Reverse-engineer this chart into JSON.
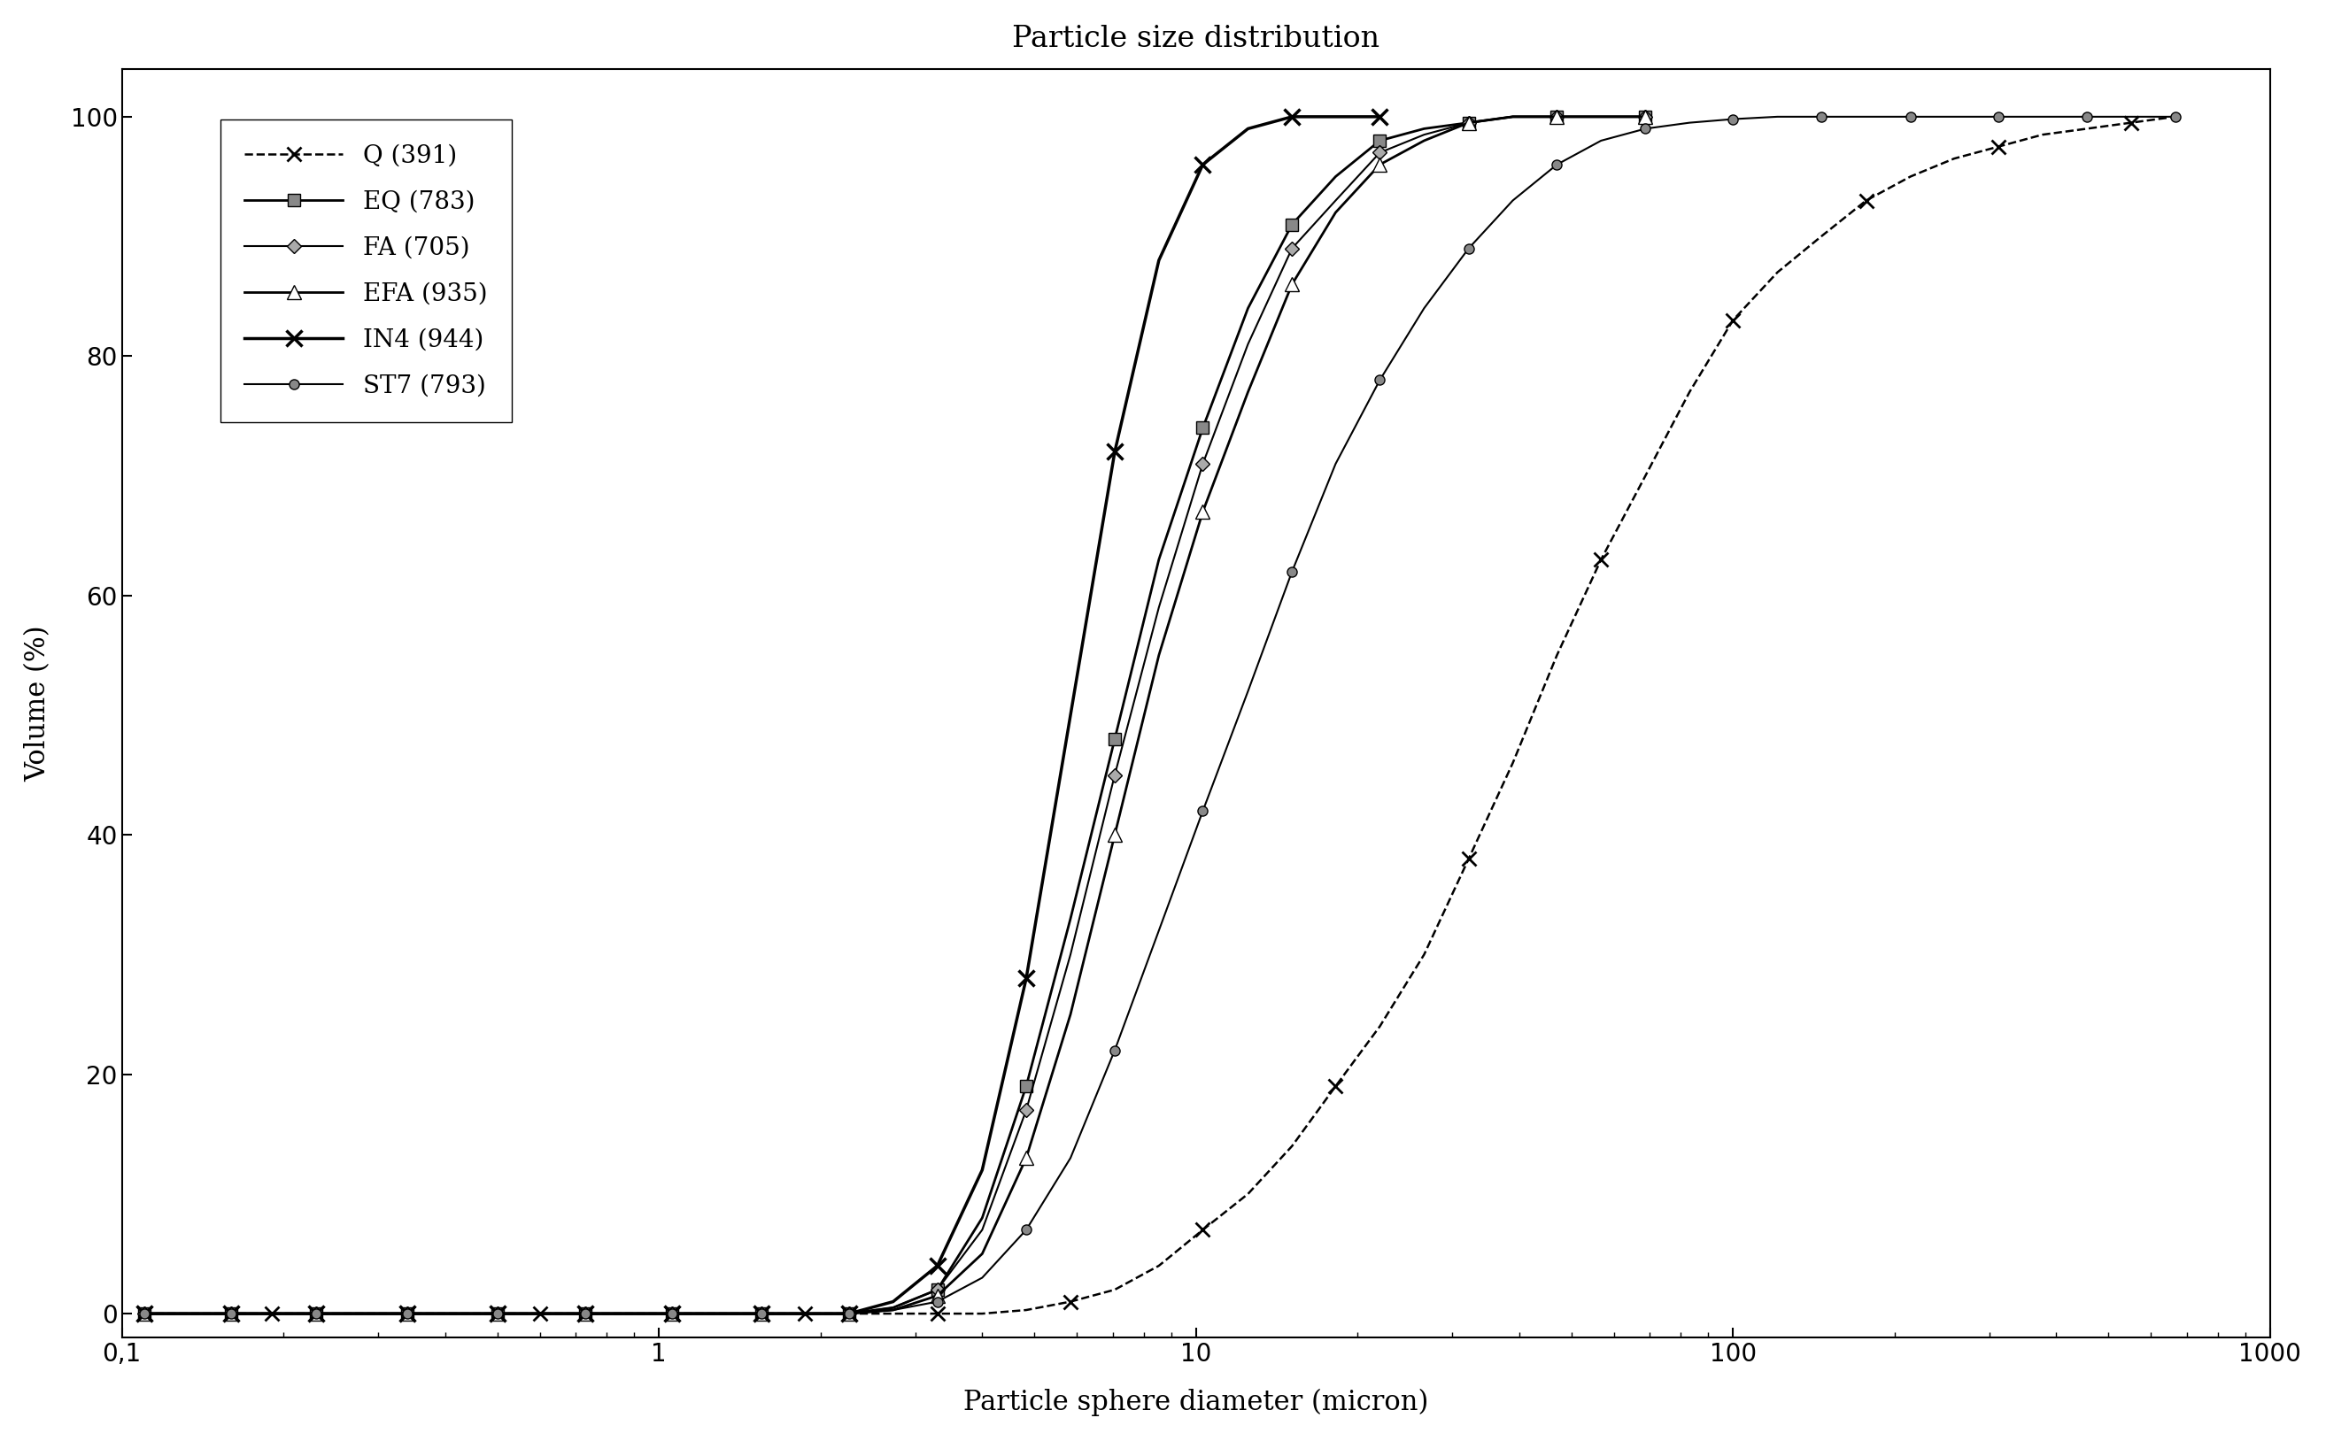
{
  "title": "Particle size distribution",
  "xlabel": "Particle sphere diameter (micron)",
  "ylabel": "Volume (%)",
  "xlim": [
    0.1,
    1000
  ],
  "ylim": [
    -2,
    104
  ],
  "yticks": [
    0,
    20,
    40,
    60,
    80,
    100
  ],
  "background_color": "#ffffff",
  "series": [
    {
      "label": "Q (391)",
      "color": "#000000",
      "linestyle": "--",
      "linewidth": 1.8,
      "marker": "x",
      "markersize": 12,
      "markeredgewidth": 2,
      "markevery": 3,
      "x": [
        0.11,
        0.13,
        0.16,
        0.19,
        0.23,
        0.28,
        0.34,
        0.41,
        0.5,
        0.6,
        0.73,
        0.88,
        1.06,
        1.28,
        1.55,
        1.87,
        2.26,
        2.73,
        3.3,
        4.0,
        4.83,
        5.84,
        7.06,
        8.53,
        10.3,
        12.5,
        15.1,
        18.2,
        22.0,
        26.6,
        32.2,
        38.9,
        47.0,
        56.8,
        68.7,
        83.0,
        100,
        121,
        146,
        177,
        214,
        258,
        312,
        377,
        456,
        551,
        666
      ],
      "y": [
        0,
        0,
        0,
        0,
        0,
        0,
        0,
        0,
        0,
        0,
        0,
        0,
        0,
        0,
        0,
        0,
        0,
        0,
        0,
        0,
        0.3,
        1,
        2,
        4,
        7,
        10,
        14,
        19,
        24,
        30,
        38,
        46,
        55,
        63,
        70,
        77,
        83,
        87,
        90,
        93,
        95,
        96.5,
        97.5,
        98.5,
        99,
        99.5,
        100
      ]
    },
    {
      "label": "EQ (783)",
      "color": "#000000",
      "linestyle": "-",
      "linewidth": 2.0,
      "marker": "s",
      "markersize": 10,
      "markerfacecolor": "#888888",
      "markeredgecolor": "#000000",
      "markevery": 2,
      "x": [
        0.11,
        0.13,
        0.16,
        0.19,
        0.23,
        0.28,
        0.34,
        0.41,
        0.5,
        0.6,
        0.73,
        0.88,
        1.06,
        1.28,
        1.55,
        1.87,
        2.26,
        2.73,
        3.3,
        4.0,
        4.83,
        5.84,
        7.06,
        8.53,
        10.3,
        12.5,
        15.1,
        18.2,
        22.0,
        26.6,
        32.2,
        38.9,
        47.0,
        56.8,
        68.7
      ],
      "y": [
        0,
        0,
        0,
        0,
        0,
        0,
        0,
        0,
        0,
        0,
        0,
        0,
        0,
        0,
        0,
        0,
        0,
        0.5,
        2,
        8,
        19,
        33,
        48,
        63,
        74,
        84,
        91,
        95,
        98,
        99,
        99.5,
        100,
        100,
        100,
        100
      ]
    },
    {
      "label": "FA (705)",
      "color": "#000000",
      "linestyle": "-",
      "linewidth": 1.5,
      "marker": "D",
      "markersize": 8,
      "markerfacecolor": "#aaaaaa",
      "markeredgecolor": "#000000",
      "markevery": 2,
      "x": [
        0.11,
        0.13,
        0.16,
        0.19,
        0.23,
        0.28,
        0.34,
        0.41,
        0.5,
        0.6,
        0.73,
        0.88,
        1.06,
        1.28,
        1.55,
        1.87,
        2.26,
        2.73,
        3.3,
        4.0,
        4.83,
        5.84,
        7.06,
        8.53,
        10.3,
        12.5,
        15.1,
        18.2,
        22.0,
        26.6,
        32.2,
        38.9,
        47.0,
        56.8,
        68.7
      ],
      "y": [
        0,
        0,
        0,
        0,
        0,
        0,
        0,
        0,
        0,
        0,
        0,
        0,
        0,
        0,
        0,
        0,
        0,
        0.5,
        2,
        7,
        17,
        30,
        45,
        59,
        71,
        81,
        89,
        93,
        97,
        98.5,
        99.5,
        100,
        100,
        100,
        100
      ]
    },
    {
      "label": "EFA (935)",
      "color": "#000000",
      "linestyle": "-",
      "linewidth": 2.0,
      "marker": "^",
      "markersize": 11,
      "markerfacecolor": "white",
      "markeredgecolor": "#000000",
      "markevery": 2,
      "x": [
        0.11,
        0.13,
        0.16,
        0.19,
        0.23,
        0.28,
        0.34,
        0.41,
        0.5,
        0.6,
        0.73,
        0.88,
        1.06,
        1.28,
        1.55,
        1.87,
        2.26,
        2.73,
        3.3,
        4.0,
        4.83,
        5.84,
        7.06,
        8.53,
        10.3,
        12.5,
        15.1,
        18.2,
        22.0,
        26.6,
        32.2,
        38.9,
        47.0,
        56.8,
        68.7
      ],
      "y": [
        0,
        0,
        0,
        0,
        0,
        0,
        0,
        0,
        0,
        0,
        0,
        0,
        0,
        0,
        0,
        0,
        0,
        0.3,
        1.5,
        5,
        13,
        25,
        40,
        55,
        67,
        77,
        86,
        92,
        96,
        98,
        99.5,
        100,
        100,
        100,
        100
      ]
    },
    {
      "label": "IN4 (944)",
      "color": "#000000",
      "linestyle": "-",
      "linewidth": 2.5,
      "marker": "x",
      "markersize": 13,
      "markeredgewidth": 2.5,
      "markevery": 2,
      "x": [
        0.11,
        0.13,
        0.16,
        0.19,
        0.23,
        0.28,
        0.34,
        0.41,
        0.5,
        0.6,
        0.73,
        0.88,
        1.06,
        1.28,
        1.55,
        1.87,
        2.26,
        2.73,
        3.3,
        4.0,
        4.83,
        5.84,
        7.06,
        8.53,
        10.3,
        12.5,
        15.1,
        18.2,
        22.0
      ],
      "y": [
        0,
        0,
        0,
        0,
        0,
        0,
        0,
        0,
        0,
        0,
        0,
        0,
        0,
        0,
        0,
        0,
        0,
        1,
        4,
        12,
        28,
        50,
        72,
        88,
        96,
        99,
        100,
        100,
        100
      ]
    },
    {
      "label": "ST7 (793)",
      "color": "#000000",
      "linestyle": "-",
      "linewidth": 1.5,
      "marker": "o",
      "markersize": 8,
      "markerfacecolor": "#888888",
      "markeredgecolor": "#000000",
      "markevery": 2,
      "x": [
        0.11,
        0.13,
        0.16,
        0.19,
        0.23,
        0.28,
        0.34,
        0.41,
        0.5,
        0.6,
        0.73,
        0.88,
        1.06,
        1.28,
        1.55,
        1.87,
        2.26,
        2.73,
        3.3,
        4.0,
        4.83,
        5.84,
        7.06,
        8.53,
        10.3,
        12.5,
        15.1,
        18.2,
        22.0,
        26.6,
        32.2,
        38.9,
        47.0,
        56.8,
        68.7,
        83.0,
        100,
        121,
        146,
        177,
        214,
        258,
        312,
        377,
        456,
        551,
        666
      ],
      "y": [
        0,
        0,
        0,
        0,
        0,
        0,
        0,
        0,
        0,
        0,
        0,
        0,
        0,
        0,
        0,
        0,
        0,
        0.3,
        1,
        3,
        7,
        13,
        22,
        32,
        42,
        52,
        62,
        71,
        78,
        84,
        89,
        93,
        96,
        98,
        99,
        99.5,
        99.8,
        100,
        100,
        100,
        100,
        100,
        100,
        100,
        100,
        100,
        100
      ]
    }
  ],
  "legend_lines": [
    {
      "label": "Q (391)",
      "linestyle": "--",
      "marker": "x",
      "markerfacecolor": "#000000"
    },
    {
      "label": "EQ (783)",
      "linestyle": "-",
      "marker": "s",
      "markerfacecolor": "#888888"
    },
    {
      "label": "FA (705)",
      "linestyle": "-",
      "marker": "D",
      "markerfacecolor": "#aaaaaa"
    },
    {
      "label": "EFA (935)",
      "linestyle": "-",
      "marker": "^",
      "markerfacecolor": "white"
    },
    {
      "label": "IN4 (944)",
      "linestyle": "-",
      "marker": "x",
      "markerfacecolor": "#000000"
    },
    {
      "label": "ST7 (793)",
      "linestyle": "-",
      "marker": "o",
      "markerfacecolor": "#888888"
    }
  ]
}
